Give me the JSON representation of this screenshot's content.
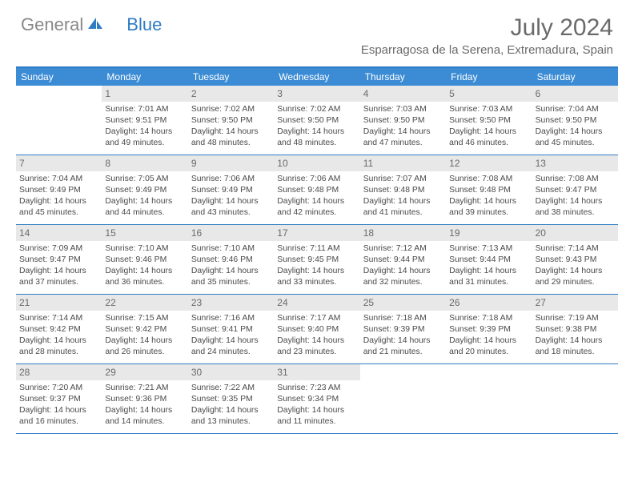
{
  "logo": {
    "part1": "General",
    "part2": "Blue"
  },
  "title": "July 2024",
  "location": "Esparragosa de la Serena, Extremadura, Spain",
  "colors": {
    "header_bg": "#3b8cd4",
    "border": "#2f7cc4",
    "daynum_bg": "#e8e8e8",
    "text": "#4a4a4a",
    "title_text": "#6a6a6a"
  },
  "day_names": [
    "Sunday",
    "Monday",
    "Tuesday",
    "Wednesday",
    "Thursday",
    "Friday",
    "Saturday"
  ],
  "weeks": [
    [
      {
        "num": "",
        "empty": true
      },
      {
        "num": "1",
        "sunrise": "Sunrise: 7:01 AM",
        "sunset": "Sunset: 9:51 PM",
        "daylight": "Daylight: 14 hours and 49 minutes."
      },
      {
        "num": "2",
        "sunrise": "Sunrise: 7:02 AM",
        "sunset": "Sunset: 9:50 PM",
        "daylight": "Daylight: 14 hours and 48 minutes."
      },
      {
        "num": "3",
        "sunrise": "Sunrise: 7:02 AM",
        "sunset": "Sunset: 9:50 PM",
        "daylight": "Daylight: 14 hours and 48 minutes."
      },
      {
        "num": "4",
        "sunrise": "Sunrise: 7:03 AM",
        "sunset": "Sunset: 9:50 PM",
        "daylight": "Daylight: 14 hours and 47 minutes."
      },
      {
        "num": "5",
        "sunrise": "Sunrise: 7:03 AM",
        "sunset": "Sunset: 9:50 PM",
        "daylight": "Daylight: 14 hours and 46 minutes."
      },
      {
        "num": "6",
        "sunrise": "Sunrise: 7:04 AM",
        "sunset": "Sunset: 9:50 PM",
        "daylight": "Daylight: 14 hours and 45 minutes."
      }
    ],
    [
      {
        "num": "7",
        "sunrise": "Sunrise: 7:04 AM",
        "sunset": "Sunset: 9:49 PM",
        "daylight": "Daylight: 14 hours and 45 minutes."
      },
      {
        "num": "8",
        "sunrise": "Sunrise: 7:05 AM",
        "sunset": "Sunset: 9:49 PM",
        "daylight": "Daylight: 14 hours and 44 minutes."
      },
      {
        "num": "9",
        "sunrise": "Sunrise: 7:06 AM",
        "sunset": "Sunset: 9:49 PM",
        "daylight": "Daylight: 14 hours and 43 minutes."
      },
      {
        "num": "10",
        "sunrise": "Sunrise: 7:06 AM",
        "sunset": "Sunset: 9:48 PM",
        "daylight": "Daylight: 14 hours and 42 minutes."
      },
      {
        "num": "11",
        "sunrise": "Sunrise: 7:07 AM",
        "sunset": "Sunset: 9:48 PM",
        "daylight": "Daylight: 14 hours and 41 minutes."
      },
      {
        "num": "12",
        "sunrise": "Sunrise: 7:08 AM",
        "sunset": "Sunset: 9:48 PM",
        "daylight": "Daylight: 14 hours and 39 minutes."
      },
      {
        "num": "13",
        "sunrise": "Sunrise: 7:08 AM",
        "sunset": "Sunset: 9:47 PM",
        "daylight": "Daylight: 14 hours and 38 minutes."
      }
    ],
    [
      {
        "num": "14",
        "sunrise": "Sunrise: 7:09 AM",
        "sunset": "Sunset: 9:47 PM",
        "daylight": "Daylight: 14 hours and 37 minutes."
      },
      {
        "num": "15",
        "sunrise": "Sunrise: 7:10 AM",
        "sunset": "Sunset: 9:46 PM",
        "daylight": "Daylight: 14 hours and 36 minutes."
      },
      {
        "num": "16",
        "sunrise": "Sunrise: 7:10 AM",
        "sunset": "Sunset: 9:46 PM",
        "daylight": "Daylight: 14 hours and 35 minutes."
      },
      {
        "num": "17",
        "sunrise": "Sunrise: 7:11 AM",
        "sunset": "Sunset: 9:45 PM",
        "daylight": "Daylight: 14 hours and 33 minutes."
      },
      {
        "num": "18",
        "sunrise": "Sunrise: 7:12 AM",
        "sunset": "Sunset: 9:44 PM",
        "daylight": "Daylight: 14 hours and 32 minutes."
      },
      {
        "num": "19",
        "sunrise": "Sunrise: 7:13 AM",
        "sunset": "Sunset: 9:44 PM",
        "daylight": "Daylight: 14 hours and 31 minutes."
      },
      {
        "num": "20",
        "sunrise": "Sunrise: 7:14 AM",
        "sunset": "Sunset: 9:43 PM",
        "daylight": "Daylight: 14 hours and 29 minutes."
      }
    ],
    [
      {
        "num": "21",
        "sunrise": "Sunrise: 7:14 AM",
        "sunset": "Sunset: 9:42 PM",
        "daylight": "Daylight: 14 hours and 28 minutes."
      },
      {
        "num": "22",
        "sunrise": "Sunrise: 7:15 AM",
        "sunset": "Sunset: 9:42 PM",
        "daylight": "Daylight: 14 hours and 26 minutes."
      },
      {
        "num": "23",
        "sunrise": "Sunrise: 7:16 AM",
        "sunset": "Sunset: 9:41 PM",
        "daylight": "Daylight: 14 hours and 24 minutes."
      },
      {
        "num": "24",
        "sunrise": "Sunrise: 7:17 AM",
        "sunset": "Sunset: 9:40 PM",
        "daylight": "Daylight: 14 hours and 23 minutes."
      },
      {
        "num": "25",
        "sunrise": "Sunrise: 7:18 AM",
        "sunset": "Sunset: 9:39 PM",
        "daylight": "Daylight: 14 hours and 21 minutes."
      },
      {
        "num": "26",
        "sunrise": "Sunrise: 7:18 AM",
        "sunset": "Sunset: 9:39 PM",
        "daylight": "Daylight: 14 hours and 20 minutes."
      },
      {
        "num": "27",
        "sunrise": "Sunrise: 7:19 AM",
        "sunset": "Sunset: 9:38 PM",
        "daylight": "Daylight: 14 hours and 18 minutes."
      }
    ],
    [
      {
        "num": "28",
        "sunrise": "Sunrise: 7:20 AM",
        "sunset": "Sunset: 9:37 PM",
        "daylight": "Daylight: 14 hours and 16 minutes."
      },
      {
        "num": "29",
        "sunrise": "Sunrise: 7:21 AM",
        "sunset": "Sunset: 9:36 PM",
        "daylight": "Daylight: 14 hours and 14 minutes."
      },
      {
        "num": "30",
        "sunrise": "Sunrise: 7:22 AM",
        "sunset": "Sunset: 9:35 PM",
        "daylight": "Daylight: 14 hours and 13 minutes."
      },
      {
        "num": "31",
        "sunrise": "Sunrise: 7:23 AM",
        "sunset": "Sunset: 9:34 PM",
        "daylight": "Daylight: 14 hours and 11 minutes."
      },
      {
        "num": "",
        "empty": true
      },
      {
        "num": "",
        "empty": true
      },
      {
        "num": "",
        "empty": true
      }
    ]
  ]
}
